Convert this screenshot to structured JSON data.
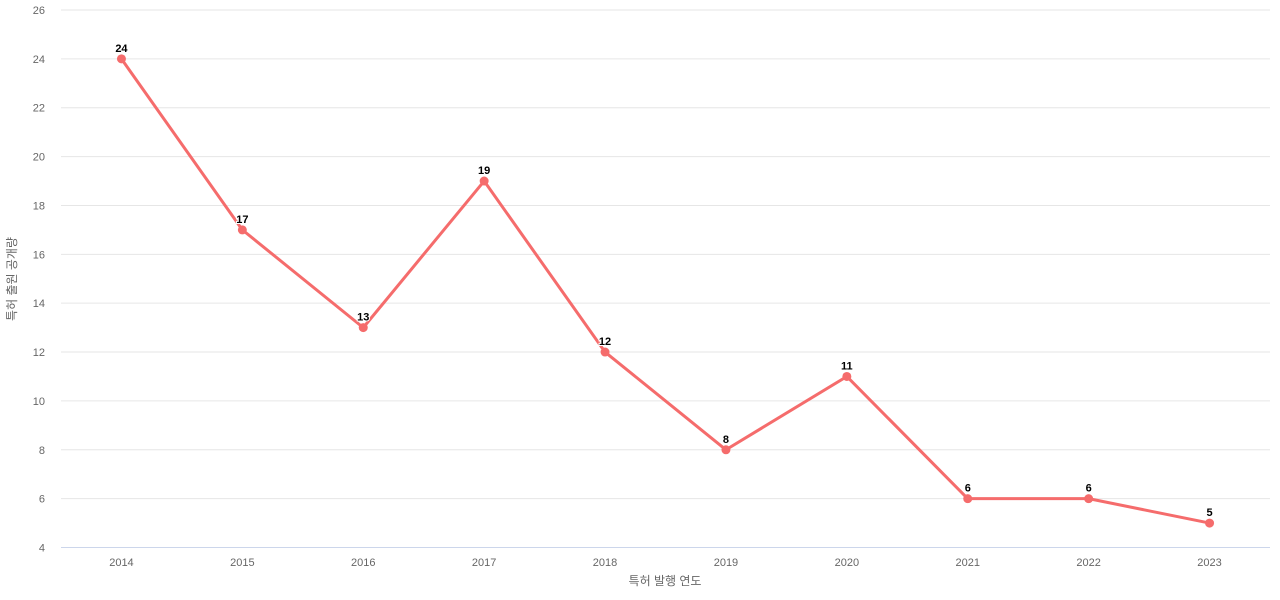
{
  "chart_data": {
    "type": "line",
    "categories": [
      "2014",
      "2015",
      "2016",
      "2017",
      "2018",
      "2019",
      "2020",
      "2021",
      "2022",
      "2023"
    ],
    "values": [
      24,
      17,
      13,
      19,
      12,
      8,
      11,
      6,
      6,
      5
    ],
    "title": "",
    "xlabel": "특허 발행 연도",
    "ylabel": "특허 출원 공개량",
    "ylim": [
      4,
      26
    ],
    "ytick_step": 2,
    "grid": true,
    "legend": "none",
    "data_labels_visible": true,
    "colors": {
      "series": "#f56c6c",
      "gridline": "#e6e6e6",
      "axis_line": "#ccd6eb",
      "tick_label": "#666666",
      "axis_title": "#666666",
      "data_label": "#000000",
      "background": "#ffffff"
    }
  }
}
